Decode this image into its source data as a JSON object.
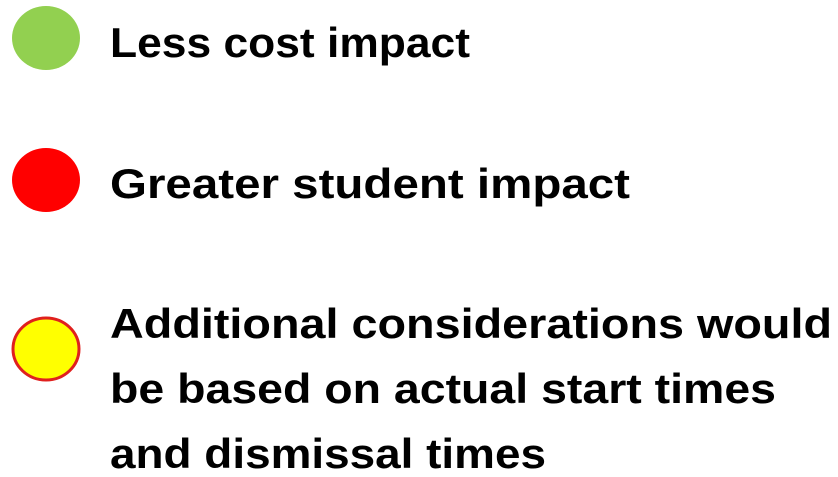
{
  "items": [
    {
      "color": "#92d050",
      "lines": [
        "Less cost impact"
      ]
    },
    {
      "color": "#ff0000",
      "lines": [
        "Greater student impact"
      ]
    },
    {
      "color": "#ffff00",
      "outline": "#e0201e",
      "lines": [
        "Additional considerations would",
        "be based on actual start times",
        "and dismissal times"
      ]
    }
  ]
}
